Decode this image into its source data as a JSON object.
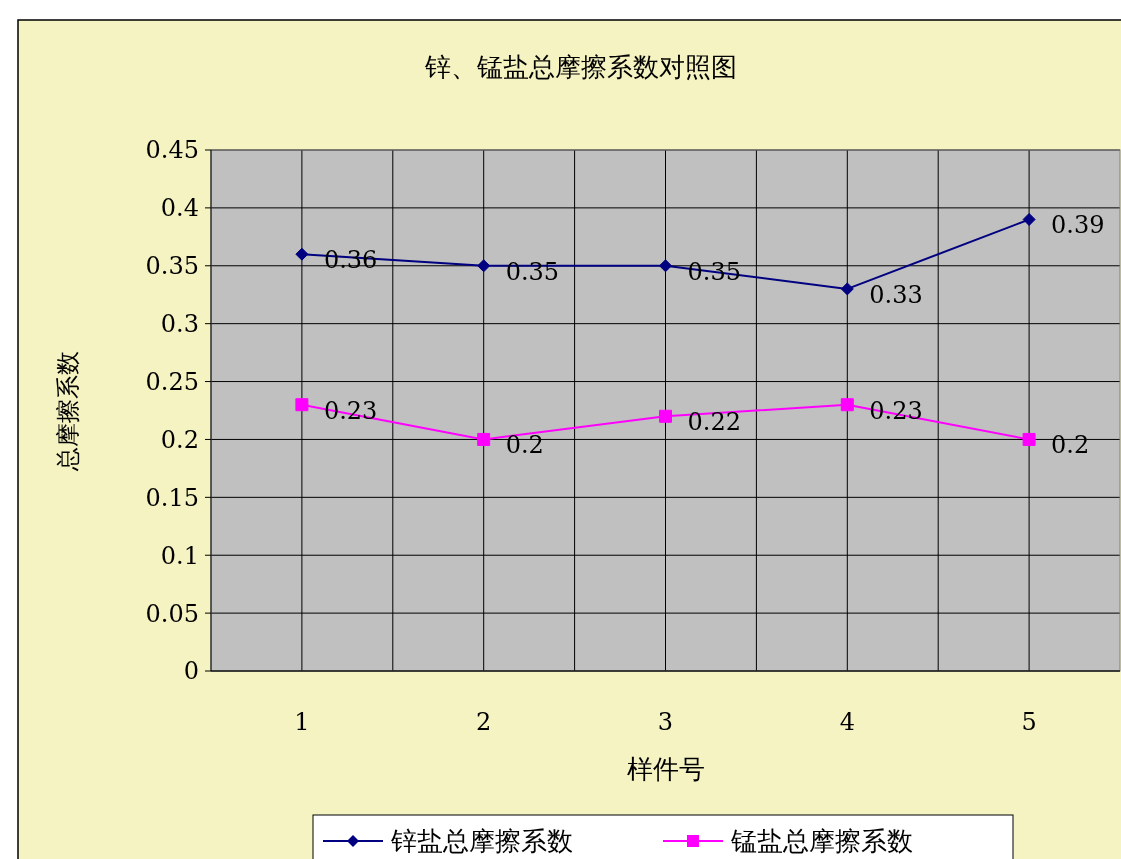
{
  "chart_data": {
    "type": "line",
    "title": "锌、锰盐总摩擦系数对照图",
    "xlabel": "样件号",
    "ylabel": "总摩擦系数",
    "categories": [
      "1",
      "2",
      "3",
      "4",
      "5"
    ],
    "series": [
      {
        "name": "锌盐总摩擦系数",
        "color": "#000080",
        "marker": "diamond",
        "values": [
          0.36,
          0.35,
          0.35,
          0.33,
          0.39
        ]
      },
      {
        "name": "锰盐总摩擦系数",
        "color": "#ff00ff",
        "marker": "square",
        "values": [
          0.23,
          0.2,
          0.22,
          0.23,
          0.2
        ]
      }
    ],
    "ylim": [
      0,
      0.45
    ],
    "yticks": [
      0,
      0.05,
      0.1,
      0.15,
      0.2,
      0.25,
      0.3,
      0.35,
      0.4,
      0.45
    ],
    "grid": true,
    "legend": "bottom",
    "data_labels": true,
    "line_style": "solid"
  }
}
